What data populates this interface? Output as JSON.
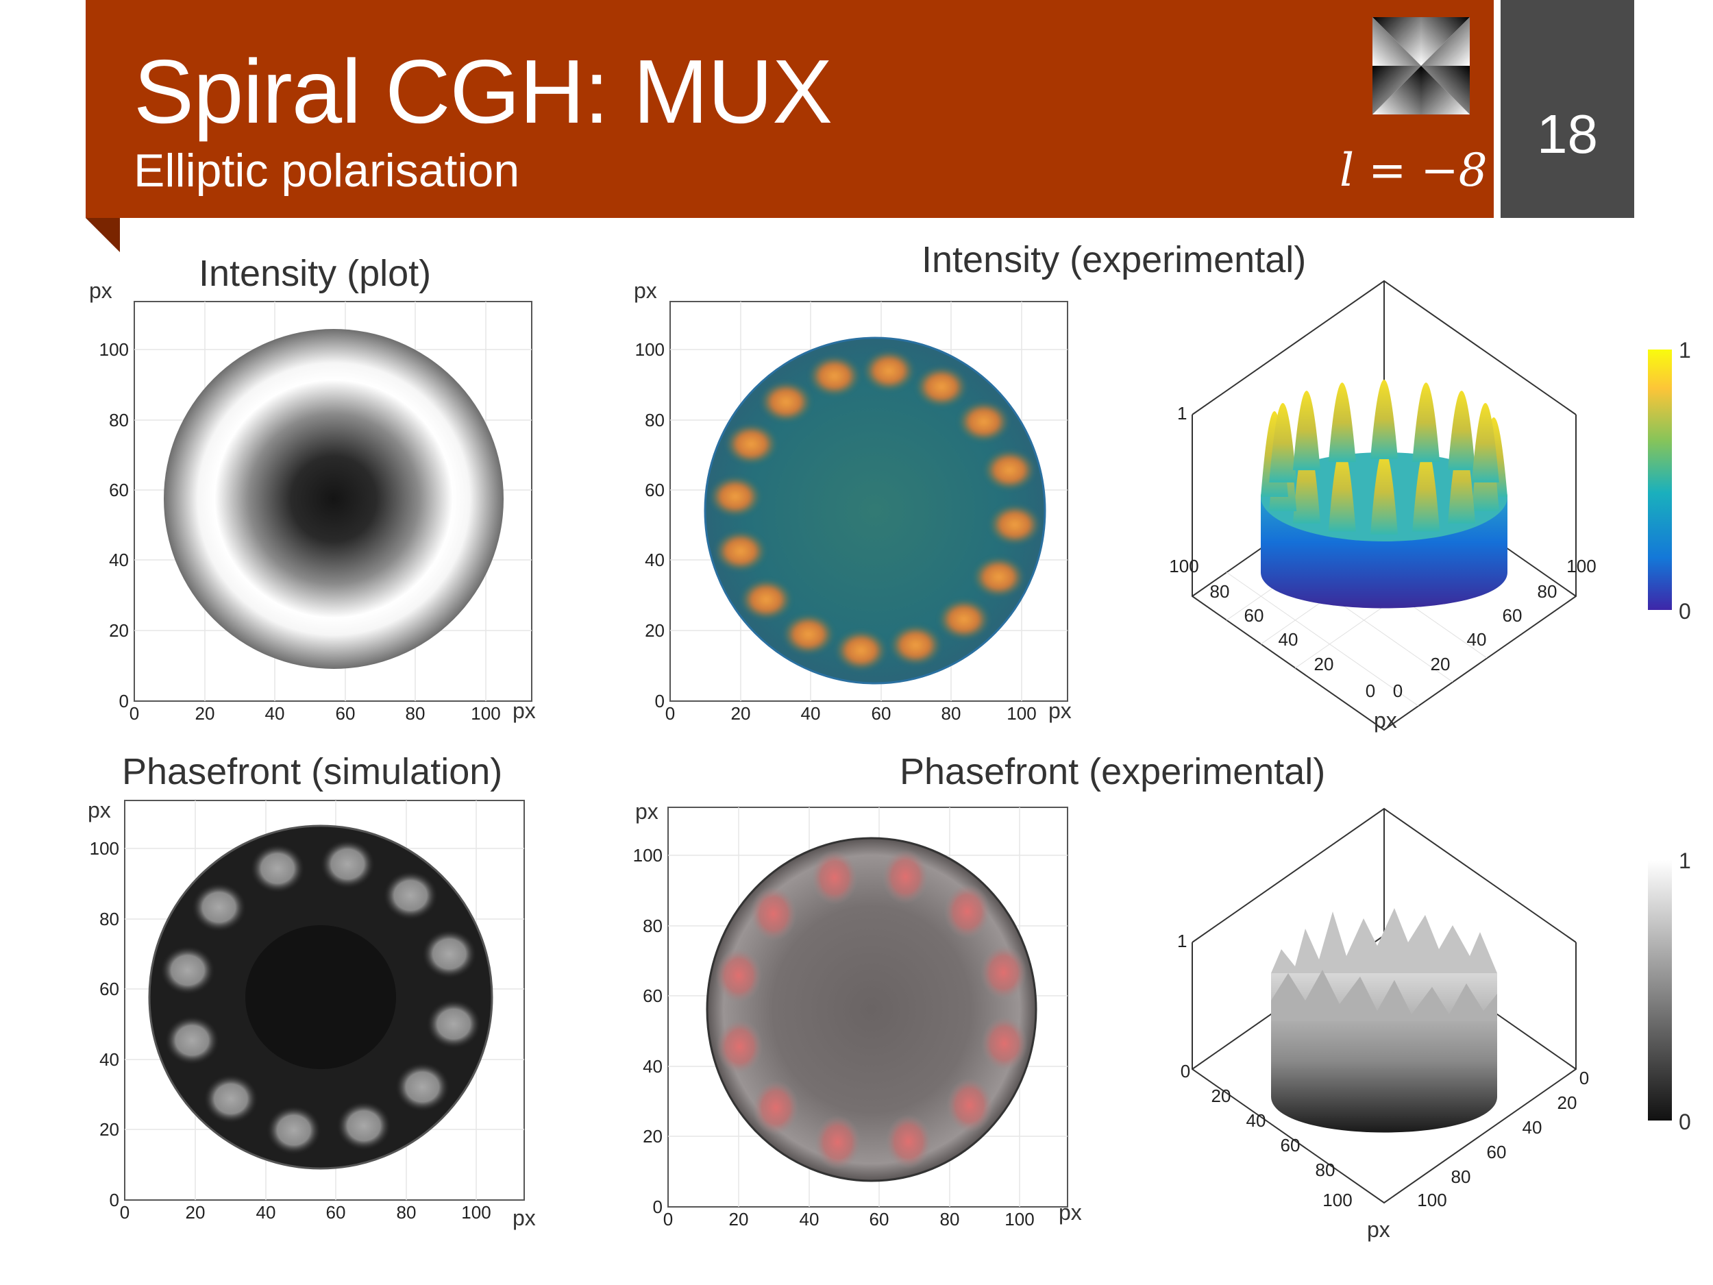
{
  "slide": {
    "title": "Spiral CGH: MUX",
    "subtitle": "Elliptic polarisation",
    "formula": "l = −8",
    "number": "18",
    "logo_icon": "spiral-phase-icon",
    "header_color": "#a93600",
    "number_box_color": "#4a4a4a"
  },
  "panels": {
    "intensity_plot": {
      "title": "Intensity (plot)",
      "unit_y": "px",
      "unit_x": "px",
      "x_ticks": [
        "0",
        "20",
        "40",
        "60",
        "80",
        "100"
      ],
      "y_ticks": [
        "0",
        "20",
        "40",
        "60",
        "80",
        "100"
      ]
    },
    "intensity_experimental": {
      "title": "Intensity (experimental)",
      "unit_y": "px",
      "unit_x": "px",
      "x_ticks": [
        "0",
        "20",
        "40",
        "60",
        "80",
        "100"
      ],
      "y_ticks": [
        "0",
        "20",
        "40",
        "60",
        "80",
        "100"
      ]
    },
    "intensity_3d": {
      "z_tick": "1",
      "left_ticks": [
        "100",
        "80",
        "60",
        "40",
        "20",
        "0"
      ],
      "right_ticks": [
        "0",
        "20",
        "40",
        "60",
        "80",
        "100"
      ],
      "unit": "px",
      "colorbar_max": "1",
      "colorbar_min": "0"
    },
    "phase_simulation": {
      "title": "Phasefront (simulation)",
      "unit_y": "px",
      "unit_x": "px",
      "x_ticks": [
        "0",
        "20",
        "40",
        "60",
        "80",
        "100"
      ],
      "y_ticks": [
        "0",
        "20",
        "40",
        "60",
        "80",
        "100"
      ]
    },
    "phase_experimental": {
      "title": "Phasefront (experimental)",
      "unit_y": "px",
      "unit_x": "px",
      "x_ticks": [
        "0",
        "20",
        "40",
        "60",
        "80",
        "100"
      ],
      "y_ticks": [
        "0",
        "20",
        "40",
        "60",
        "80",
        "100"
      ]
    },
    "phase_3d": {
      "z_tick": "1",
      "left_ticks": [
        "0",
        "20",
        "40",
        "60",
        "80",
        "100"
      ],
      "right_ticks": [
        "0",
        "20",
        "40",
        "60",
        "80",
        "100"
      ],
      "unit": "px",
      "colorbar_max": "1",
      "colorbar_min": "0"
    }
  }
}
